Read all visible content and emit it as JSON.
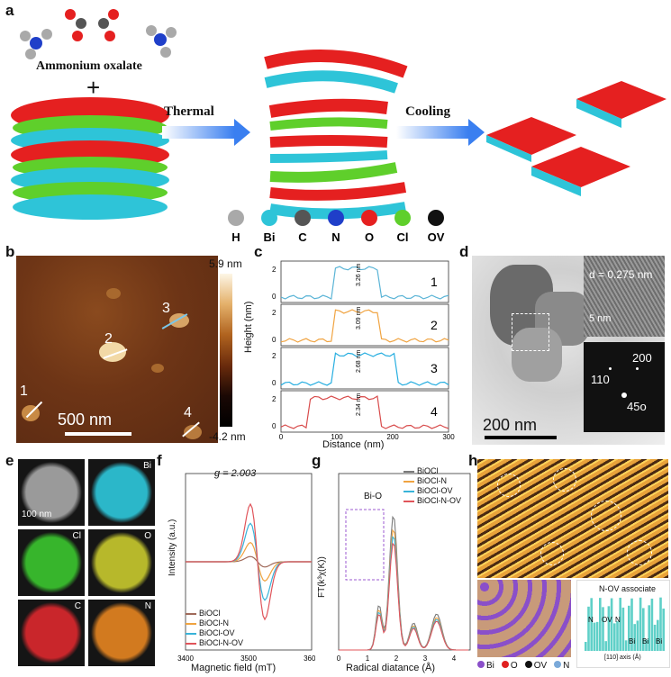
{
  "panel_labels": {
    "a": "a",
    "b": "b",
    "c": "c",
    "d": "d",
    "e": "e",
    "f": "f",
    "g": "g",
    "h": "h"
  },
  "a": {
    "reagent": "Ammonium oxalate",
    "plus": "+",
    "step1": "Thermal",
    "step2": "Cooling",
    "legend": [
      {
        "symbol": "H",
        "color": "#a9a9a9"
      },
      {
        "symbol": "Bi",
        "color": "#2ec4d8"
      },
      {
        "symbol": "C",
        "color": "#555555"
      },
      {
        "symbol": "N",
        "color": "#1f3fc9"
      },
      {
        "symbol": "O",
        "color": "#e52020"
      },
      {
        "symbol": "Cl",
        "color": "#5fcf2b"
      },
      {
        "symbol": "OV",
        "color": "#111111"
      }
    ]
  },
  "b": {
    "scale_max": "5.9 nm",
    "scale_min": "-4.2 nm",
    "scalebar": "500 nm",
    "markers": [
      "1",
      "2",
      "3",
      "4"
    ]
  },
  "c": {
    "xlabel": "Distance (nm)",
    "ylabel": "Height (nm)",
    "xticks": [
      "0",
      "100",
      "200",
      "300"
    ],
    "yticks": [
      "0",
      "2"
    ],
    "profiles": [
      {
        "id": "1",
        "color": "#5ab4d6",
        "height_label": "3.26 nm"
      },
      {
        "id": "2",
        "color": "#f0a340",
        "height_label": "3.09 nm"
      },
      {
        "id": "3",
        "color": "#27aee0",
        "height_label": "2.68 nm"
      },
      {
        "id": "4",
        "color": "#d84b4b",
        "height_label": "2.34 nm"
      }
    ]
  },
  "d": {
    "scalebar": "200 nm",
    "hr_label": "d = 0.275 nm",
    "hr_scale": "5 nm",
    "saed": [
      "110",
      "200",
      "45o"
    ]
  },
  "e": {
    "scalebar": "100 nm",
    "tiles": [
      {
        "element": "",
        "color": "#9a9a9a"
      },
      {
        "element": "Bi",
        "color": "#2bb7c9"
      },
      {
        "element": "Cl",
        "color": "#37b52c"
      },
      {
        "element": "O",
        "color": "#b7b82b"
      },
      {
        "element": "C",
        "color": "#c9262b"
      },
      {
        "element": "N",
        "color": "#d27a1f"
      }
    ],
    "tile_scale": "100 nm"
  },
  "f": {
    "annotation": "g = 2.003",
    "xlabel": "Magnetic field (mT)",
    "ylabel": "Intensity (a.u.)",
    "xticks": [
      "3400",
      "3500",
      "3600"
    ],
    "legend": [
      {
        "name": "BiOCl",
        "color": "#a06a5a"
      },
      {
        "name": "BiOCl-N",
        "color": "#f0a340"
      },
      {
        "name": "BiOCl-OV",
        "color": "#38b3d9"
      },
      {
        "name": "BiOCl-N-OV",
        "color": "#e0545a"
      }
    ]
  },
  "g": {
    "annotation": "Bi-O",
    "xlabel": "Radical diatance (Å)",
    "ylabel": "FT(k³χ(K))",
    "xticks": [
      "0",
      "1",
      "2",
      "3",
      "4"
    ],
    "legend": [
      {
        "name": "BiOCl",
        "color": "#7a7a7a"
      },
      {
        "name": "BiOCl-N",
        "color": "#f0a340"
      },
      {
        "name": "BiOCl-OV",
        "color": "#38b3d9"
      },
      {
        "name": "BiOCl-N-OV",
        "color": "#e0545a"
      }
    ]
  },
  "h": {
    "legend": [
      {
        "symbol": "Bi",
        "color": "#8a4fc9"
      },
      {
        "symbol": "O",
        "color": "#e02020"
      },
      {
        "symbol": "OV",
        "color": "#111111"
      },
      {
        "symbol": "N",
        "color": "#7aa9d9"
      }
    ],
    "inset_title": "N-OV associate",
    "inset_labels": [
      "N",
      "OV",
      "N",
      "Bi",
      "Bi",
      "Bi"
    ],
    "inset_xlabel": "[110] axis (Å)",
    "inset_ylabel": "Height (a.u.)",
    "inset_xticks": [
      "0.0",
      "0.3",
      "0.6",
      "0.9",
      "1.2"
    ]
  }
}
